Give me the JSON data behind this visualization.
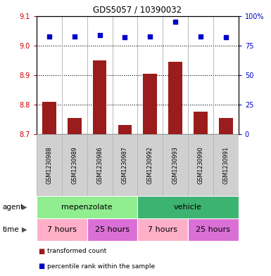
{
  "title": "GDS5057 / 10390032",
  "samples": [
    "GSM1230988",
    "GSM1230989",
    "GSM1230986",
    "GSM1230987",
    "GSM1230992",
    "GSM1230993",
    "GSM1230990",
    "GSM1230991"
  ],
  "bar_values": [
    8.81,
    8.755,
    8.95,
    8.73,
    8.905,
    8.945,
    8.775,
    8.755
  ],
  "percentile_values": [
    83,
    83,
    84,
    82,
    83,
    95,
    83,
    82
  ],
  "ylim_left": [
    8.7,
    9.1
  ],
  "ylim_right": [
    0,
    100
  ],
  "yticks_left": [
    8.7,
    8.8,
    8.9,
    9.0,
    9.1
  ],
  "yticks_right": [
    0,
    25,
    50,
    75,
    100
  ],
  "bar_color": "#9B1C1C",
  "dot_color": "#0000CC",
  "agent_groups": [
    {
      "label": "mepenzolate",
      "start": 0,
      "end": 4,
      "color": "#90EE90"
    },
    {
      "label": "vehicle",
      "start": 4,
      "end": 8,
      "color": "#3CB371"
    }
  ],
  "time_groups": [
    {
      "label": "7 hours",
      "start": 0,
      "end": 2,
      "color": "#FFB0C8"
    },
    {
      "label": "25 hours",
      "start": 2,
      "end": 4,
      "color": "#DA70D6"
    },
    {
      "label": "7 hours",
      "start": 4,
      "end": 6,
      "color": "#FFB0C8"
    },
    {
      "label": "25 hours",
      "start": 6,
      "end": 8,
      "color": "#DA70D6"
    }
  ],
  "bar_width": 0.55,
  "left_axis_color": "#CC0000",
  "right_axis_color": "#0000CC",
  "plot_bg_color": "#ffffff",
  "sample_box_color": "#d0d0d0",
  "sample_box_edge": "#b0b0b0"
}
